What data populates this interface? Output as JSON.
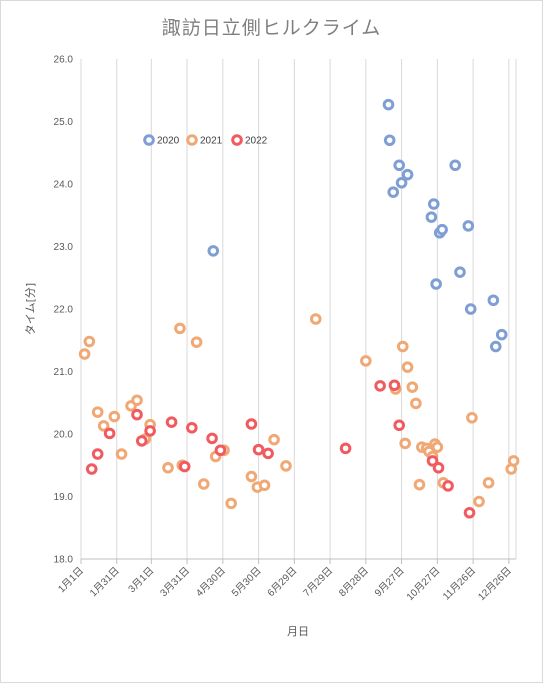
{
  "chart_data": {
    "type": "scatter",
    "title": "諏訪日立側ヒルクライム",
    "xlabel": "月日",
    "ylabel": "タイム[分]",
    "ylim": [
      18.0,
      26.0
    ],
    "yticks": [
      "18.0",
      "19.0",
      "20.0",
      "21.0",
      "22.0",
      "23.0",
      "24.0",
      "25.0",
      "26.0"
    ],
    "xlim_day": [
      1,
      366
    ],
    "xticks": [
      {
        "label": "1月1日",
        "day": 1
      },
      {
        "label": "1月31日",
        "day": 31
      },
      {
        "label": "3月1日",
        "day": 60
      },
      {
        "label": "3月31日",
        "day": 90
      },
      {
        "label": "4月30日",
        "day": 120
      },
      {
        "label": "5月30日",
        "day": 150
      },
      {
        "label": "6月29日",
        "day": 180
      },
      {
        "label": "7月29日",
        "day": 210
      },
      {
        "label": "8月28日",
        "day": 240
      },
      {
        "label": "9月27日",
        "day": 270
      },
      {
        "label": "10月27日",
        "day": 300
      },
      {
        "label": "11月26日",
        "day": 330
      },
      {
        "label": "12月26日",
        "day": 360
      }
    ],
    "grid": "vertical",
    "legend_position": "top-left",
    "series": [
      {
        "name": "2020",
        "color": "#7f9fd4",
        "points": [
          [
            112,
            22.93
          ],
          [
            259,
            25.27
          ],
          [
            260,
            24.7
          ],
          [
            263,
            23.87
          ],
          [
            268,
            24.3
          ],
          [
            270,
            24.02
          ],
          [
            275,
            24.15
          ],
          [
            295,
            23.47
          ],
          [
            297,
            23.68
          ],
          [
            299,
            22.4
          ],
          [
            302,
            23.22
          ],
          [
            304,
            23.27
          ],
          [
            315,
            24.3
          ],
          [
            319,
            22.59
          ],
          [
            326,
            23.33
          ],
          [
            328,
            22.0
          ],
          [
            347,
            22.14
          ],
          [
            349,
            21.4
          ],
          [
            354,
            21.59
          ]
        ]
      },
      {
        "name": "2021",
        "color": "#f0a875",
        "points": [
          [
            4,
            21.28
          ],
          [
            8,
            21.48
          ],
          [
            15,
            20.35
          ],
          [
            20,
            20.13
          ],
          [
            29,
            20.28
          ],
          [
            35,
            19.68
          ],
          [
            43,
            20.45
          ],
          [
            48,
            20.54
          ],
          [
            55,
            19.92
          ],
          [
            59,
            20.15
          ],
          [
            74,
            19.46
          ],
          [
            84,
            21.69
          ],
          [
            86,
            19.5
          ],
          [
            98,
            21.47
          ],
          [
            104,
            19.2
          ],
          [
            114,
            19.64
          ],
          [
            121,
            19.74
          ],
          [
            127,
            18.89
          ],
          [
            144,
            19.32
          ],
          [
            149,
            19.15
          ],
          [
            155,
            19.18
          ],
          [
            163,
            19.91
          ],
          [
            173,
            19.49
          ],
          [
            198,
            21.84
          ],
          [
            240,
            21.17
          ],
          [
            265,
            20.72
          ],
          [
            271,
            21.4
          ],
          [
            273,
            19.85
          ],
          [
            275,
            21.07
          ],
          [
            279,
            20.75
          ],
          [
            282,
            20.49
          ],
          [
            285,
            19.19
          ],
          [
            287,
            19.79
          ],
          [
            291,
            19.77
          ],
          [
            293,
            19.72
          ],
          [
            296,
            19.64
          ],
          [
            298,
            19.84
          ],
          [
            300,
            19.79
          ],
          [
            305,
            19.22
          ],
          [
            329,
            20.26
          ],
          [
            335,
            18.92
          ],
          [
            343,
            19.22
          ],
          [
            362,
            19.44
          ],
          [
            364,
            19.57
          ]
        ]
      },
      {
        "name": "2022",
        "color": "#f15a5f",
        "points": [
          [
            10,
            19.44
          ],
          [
            15,
            19.68
          ],
          [
            25,
            20.01
          ],
          [
            48,
            20.31
          ],
          [
            52,
            19.89
          ],
          [
            59,
            20.05
          ],
          [
            77,
            20.19
          ],
          [
            88,
            19.48
          ],
          [
            94,
            20.1
          ],
          [
            111,
            19.93
          ],
          [
            118,
            19.74
          ],
          [
            144,
            20.16
          ],
          [
            150,
            19.75
          ],
          [
            158,
            19.69
          ],
          [
            223,
            19.77
          ],
          [
            252,
            20.77
          ],
          [
            264,
            20.78
          ],
          [
            268,
            20.14
          ],
          [
            296,
            19.57
          ],
          [
            301,
            19.46
          ],
          [
            309,
            19.17
          ],
          [
            327,
            18.74
          ]
        ]
      }
    ]
  }
}
